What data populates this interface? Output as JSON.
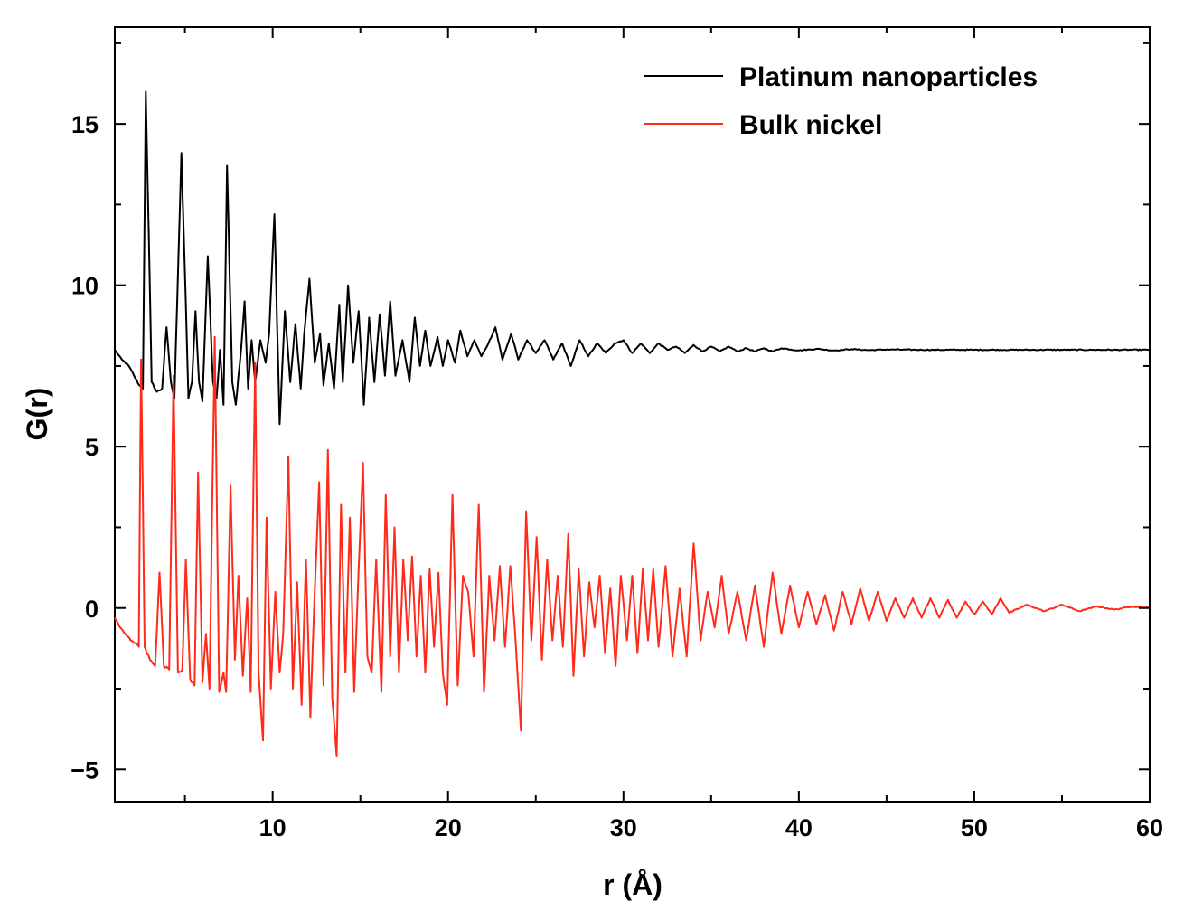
{
  "chart_data": {
    "type": "line",
    "title": "",
    "xlabel": "r (Å)",
    "ylabel": "G(r)",
    "xlim": [
      1,
      60
    ],
    "ylim": [
      -6,
      18
    ],
    "x_ticks": [
      10,
      20,
      30,
      40,
      50,
      60
    ],
    "x_tick_labels": [
      "10",
      "20",
      "30",
      "40",
      "50",
      "60"
    ],
    "y_ticks": [
      -5,
      0,
      5,
      10,
      15
    ],
    "y_tick_labels": [
      "−5",
      "0",
      "5",
      "10",
      "15"
    ],
    "grid": false,
    "legend_position": "top-right",
    "series": [
      {
        "name": "Platinum nanoparticles",
        "color": "#000000",
        "baseline": 8.0,
        "points": [
          [
            1.0,
            8.0
          ],
          [
            1.4,
            7.7
          ],
          [
            1.8,
            7.5
          ],
          [
            2.1,
            7.2
          ],
          [
            2.4,
            6.9
          ],
          [
            2.6,
            6.8
          ],
          [
            2.77,
            16.0
          ],
          [
            3.1,
            7.0
          ],
          [
            3.4,
            6.7
          ],
          [
            3.7,
            6.8
          ],
          [
            3.95,
            8.7
          ],
          [
            4.2,
            7.0
          ],
          [
            4.4,
            6.5
          ],
          [
            4.8,
            14.1
          ],
          [
            5.2,
            6.5
          ],
          [
            5.4,
            7.0
          ],
          [
            5.6,
            9.2
          ],
          [
            5.8,
            7.0
          ],
          [
            6.0,
            6.4
          ],
          [
            6.3,
            10.9
          ],
          [
            6.6,
            7.0
          ],
          [
            6.8,
            6.5
          ],
          [
            7.0,
            8.0
          ],
          [
            7.2,
            6.3
          ],
          [
            7.4,
            13.7
          ],
          [
            7.7,
            7.0
          ],
          [
            7.9,
            6.3
          ],
          [
            8.2,
            8.0
          ],
          [
            8.4,
            9.5
          ],
          [
            8.6,
            6.8
          ],
          [
            8.8,
            8.3
          ],
          [
            9.0,
            7.0
          ],
          [
            9.3,
            8.3
          ],
          [
            9.6,
            7.6
          ],
          [
            9.8,
            8.5
          ],
          [
            10.1,
            12.2
          ],
          [
            10.4,
            5.7
          ],
          [
            10.7,
            9.2
          ],
          [
            11.0,
            7.0
          ],
          [
            11.3,
            8.8
          ],
          [
            11.6,
            6.8
          ],
          [
            11.8,
            8.5
          ],
          [
            12.1,
            10.2
          ],
          [
            12.4,
            7.6
          ],
          [
            12.7,
            8.5
          ],
          [
            12.9,
            6.9
          ],
          [
            13.2,
            8.2
          ],
          [
            13.5,
            6.8
          ],
          [
            13.8,
            9.4
          ],
          [
            14.0,
            7.0
          ],
          [
            14.3,
            10.0
          ],
          [
            14.6,
            7.6
          ],
          [
            14.9,
            9.2
          ],
          [
            15.2,
            6.3
          ],
          [
            15.5,
            9.0
          ],
          [
            15.8,
            7.0
          ],
          [
            16.1,
            9.1
          ],
          [
            16.4,
            7.2
          ],
          [
            16.7,
            9.5
          ],
          [
            17.0,
            7.2
          ],
          [
            17.4,
            8.3
          ],
          [
            17.8,
            7.0
          ],
          [
            18.1,
            9.0
          ],
          [
            18.4,
            7.5
          ],
          [
            18.7,
            8.6
          ],
          [
            19.0,
            7.5
          ],
          [
            19.4,
            8.4
          ],
          [
            19.7,
            7.5
          ],
          [
            20.0,
            8.3
          ],
          [
            20.4,
            7.6
          ],
          [
            20.7,
            8.6
          ],
          [
            21.1,
            7.8
          ],
          [
            21.5,
            8.3
          ],
          [
            21.9,
            7.8
          ],
          [
            22.3,
            8.2
          ],
          [
            22.7,
            8.7
          ],
          [
            23.1,
            7.7
          ],
          [
            23.6,
            8.5
          ],
          [
            24.0,
            7.7
          ],
          [
            24.5,
            8.3
          ],
          [
            25.0,
            7.9
          ],
          [
            25.5,
            8.3
          ],
          [
            26.0,
            7.7
          ],
          [
            26.5,
            8.2
          ],
          [
            27.0,
            7.5
          ],
          [
            27.5,
            8.3
          ],
          [
            28.0,
            7.8
          ],
          [
            28.5,
            8.2
          ],
          [
            29.0,
            7.9
          ],
          [
            29.5,
            8.2
          ],
          [
            30.0,
            8.3
          ],
          [
            30.5,
            7.9
          ],
          [
            31.0,
            8.2
          ],
          [
            31.5,
            7.9
          ],
          [
            32.0,
            8.2
          ],
          [
            32.5,
            8.0
          ],
          [
            33.0,
            8.1
          ],
          [
            33.5,
            7.9
          ],
          [
            34.0,
            8.15
          ],
          [
            34.5,
            7.95
          ],
          [
            35.0,
            8.1
          ],
          [
            35.5,
            7.95
          ],
          [
            36.0,
            8.1
          ],
          [
            36.5,
            7.95
          ],
          [
            37.0,
            8.05
          ],
          [
            37.5,
            7.95
          ],
          [
            38.0,
            8.05
          ],
          [
            38.5,
            7.95
          ],
          [
            39.0,
            8.05
          ],
          [
            40.0,
            7.98
          ],
          [
            41.0,
            8.03
          ],
          [
            42.0,
            7.98
          ],
          [
            43.0,
            8.02
          ],
          [
            44.0,
            7.99
          ],
          [
            45.0,
            8.01
          ],
          [
            47.0,
            8.0
          ],
          [
            50.0,
            8.0
          ],
          [
            60.0,
            8.0
          ]
        ]
      },
      {
        "name": "Bulk nickel",
        "color": "#ff2a1a",
        "baseline": 0.0,
        "points": [
          [
            1.0,
            -0.3
          ],
          [
            1.3,
            -0.6
          ],
          [
            1.6,
            -0.8
          ],
          [
            1.9,
            -1.0
          ],
          [
            2.2,
            -1.1
          ],
          [
            2.37,
            -1.2
          ],
          [
            2.5,
            7.7
          ],
          [
            2.7,
            -1.2
          ],
          [
            3.0,
            -1.6
          ],
          [
            3.3,
            -1.8
          ],
          [
            3.55,
            1.1
          ],
          [
            3.8,
            -1.8
          ],
          [
            4.1,
            -1.9
          ],
          [
            4.35,
            7.2
          ],
          [
            4.6,
            -2.0
          ],
          [
            4.85,
            -1.9
          ],
          [
            5.05,
            1.5
          ],
          [
            5.3,
            -2.2
          ],
          [
            5.55,
            -2.4
          ],
          [
            5.75,
            4.2
          ],
          [
            6.0,
            -2.3
          ],
          [
            6.2,
            -0.8
          ],
          [
            6.4,
            -2.5
          ],
          [
            6.7,
            8.4
          ],
          [
            6.95,
            -2.6
          ],
          [
            7.2,
            -2.0
          ],
          [
            7.35,
            -2.6
          ],
          [
            7.6,
            3.8
          ],
          [
            7.85,
            -1.6
          ],
          [
            8.05,
            1.0
          ],
          [
            8.3,
            -2.1
          ],
          [
            8.55,
            0.3
          ],
          [
            8.75,
            -2.6
          ],
          [
            9.0,
            7.6
          ],
          [
            9.2,
            -2.0
          ],
          [
            9.45,
            -4.1
          ],
          [
            9.65,
            2.8
          ],
          [
            9.9,
            -2.5
          ],
          [
            10.15,
            0.5
          ],
          [
            10.4,
            -2.0
          ],
          [
            10.6,
            -0.8
          ],
          [
            10.9,
            4.7
          ],
          [
            11.15,
            -2.5
          ],
          [
            11.4,
            0.8
          ],
          [
            11.65,
            -3.0
          ],
          [
            11.9,
            1.5
          ],
          [
            12.15,
            -3.4
          ],
          [
            12.4,
            0.5
          ],
          [
            12.65,
            3.9
          ],
          [
            12.9,
            -2.4
          ],
          [
            13.15,
            4.9
          ],
          [
            13.4,
            -2.8
          ],
          [
            13.65,
            -4.6
          ],
          [
            13.9,
            3.2
          ],
          [
            14.15,
            -2.0
          ],
          [
            14.4,
            2.8
          ],
          [
            14.65,
            -2.6
          ],
          [
            14.9,
            1.2
          ],
          [
            15.15,
            4.5
          ],
          [
            15.4,
            -1.5
          ],
          [
            15.65,
            -2.0
          ],
          [
            15.9,
            1.5
          ],
          [
            16.2,
            -2.6
          ],
          [
            16.45,
            3.5
          ],
          [
            16.7,
            -1.5
          ],
          [
            16.95,
            2.5
          ],
          [
            17.2,
            -2.0
          ],
          [
            17.45,
            1.5
          ],
          [
            17.7,
            -1.0
          ],
          [
            17.95,
            1.6
          ],
          [
            18.2,
            -1.5
          ],
          [
            18.45,
            1.0
          ],
          [
            18.7,
            -2.0
          ],
          [
            18.95,
            1.2
          ],
          [
            19.2,
            -1.2
          ],
          [
            19.45,
            1.1
          ],
          [
            19.7,
            -2.0
          ],
          [
            19.95,
            -3.0
          ],
          [
            20.25,
            3.5
          ],
          [
            20.55,
            -2.4
          ],
          [
            20.85,
            1.0
          ],
          [
            21.15,
            0.5
          ],
          [
            21.45,
            -1.5
          ],
          [
            21.75,
            3.2
          ],
          [
            22.05,
            -2.6
          ],
          [
            22.35,
            1.0
          ],
          [
            22.65,
            -1.0
          ],
          [
            22.95,
            1.3
          ],
          [
            23.25,
            -1.2
          ],
          [
            23.55,
            1.3
          ],
          [
            23.85,
            -1.0
          ],
          [
            24.15,
            -3.8
          ],
          [
            24.45,
            3.0
          ],
          [
            24.75,
            -1.0
          ],
          [
            25.05,
            2.2
          ],
          [
            25.35,
            -1.6
          ],
          [
            25.65,
            1.5
          ],
          [
            25.95,
            -1.0
          ],
          [
            26.25,
            1.0
          ],
          [
            26.55,
            -1.2
          ],
          [
            26.85,
            2.3
          ],
          [
            27.15,
            -2.1
          ],
          [
            27.45,
            1.2
          ],
          [
            27.75,
            -1.5
          ],
          [
            28.05,
            0.8
          ],
          [
            28.35,
            -0.6
          ],
          [
            28.65,
            1.0
          ],
          [
            28.95,
            -1.4
          ],
          [
            29.25,
            0.6
          ],
          [
            29.55,
            -1.8
          ],
          [
            29.85,
            1.0
          ],
          [
            30.2,
            -1.0
          ],
          [
            30.5,
            1.0
          ],
          [
            30.8,
            -1.4
          ],
          [
            31.1,
            1.2
          ],
          [
            31.4,
            -1.0
          ],
          [
            31.7,
            1.2
          ],
          [
            32.0,
            -1.2
          ],
          [
            32.4,
            1.3
          ],
          [
            32.8,
            -1.5
          ],
          [
            33.2,
            0.6
          ],
          [
            33.6,
            -1.5
          ],
          [
            34.0,
            2.0
          ],
          [
            34.4,
            -1.0
          ],
          [
            34.8,
            0.5
          ],
          [
            35.2,
            -0.6
          ],
          [
            35.6,
            1.0
          ],
          [
            36.0,
            -0.8
          ],
          [
            36.5,
            0.5
          ],
          [
            37.0,
            -1.0
          ],
          [
            37.5,
            0.7
          ],
          [
            38.0,
            -1.2
          ],
          [
            38.5,
            1.1
          ],
          [
            39.0,
            -0.8
          ],
          [
            39.5,
            0.7
          ],
          [
            40.0,
            -0.6
          ],
          [
            40.5,
            0.5
          ],
          [
            41.0,
            -0.5
          ],
          [
            41.5,
            0.4
          ],
          [
            42.0,
            -0.7
          ],
          [
            42.5,
            0.5
          ],
          [
            43.0,
            -0.5
          ],
          [
            43.5,
            0.6
          ],
          [
            44.0,
            -0.4
          ],
          [
            44.5,
            0.5
          ],
          [
            45.0,
            -0.4
          ],
          [
            45.5,
            0.3
          ],
          [
            46.0,
            -0.3
          ],
          [
            46.5,
            0.3
          ],
          [
            47.0,
            -0.3
          ],
          [
            47.5,
            0.3
          ],
          [
            48.0,
            -0.3
          ],
          [
            48.5,
            0.25
          ],
          [
            49.0,
            -0.3
          ],
          [
            49.5,
            0.2
          ],
          [
            50.0,
            -0.2
          ],
          [
            50.5,
            0.2
          ],
          [
            51.0,
            -0.2
          ],
          [
            51.5,
            0.3
          ],
          [
            52.0,
            -0.15
          ],
          [
            53.0,
            0.1
          ],
          [
            54.0,
            -0.1
          ],
          [
            55.0,
            0.1
          ],
          [
            56.0,
            -0.1
          ],
          [
            57.0,
            0.05
          ],
          [
            58.0,
            -0.05
          ],
          [
            59.0,
            0.05
          ],
          [
            60.0,
            0.0
          ]
        ]
      }
    ]
  }
}
